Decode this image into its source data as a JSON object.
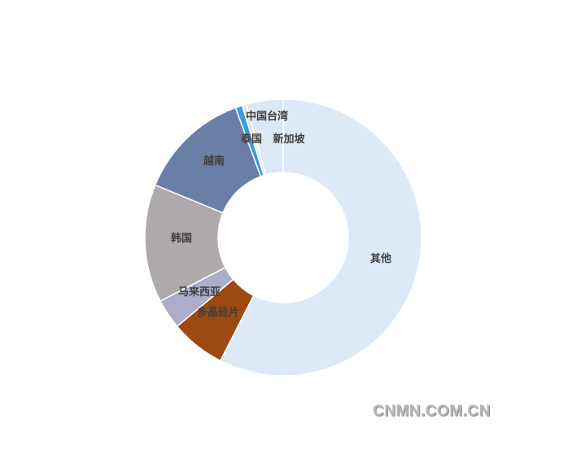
{
  "chart_data": {
    "type": "pie",
    "donut": true,
    "start": "top, clockwise",
    "slices": [
      {
        "name": "其他",
        "value": 57.5,
        "color": "#dde9f6"
      },
      {
        "name": "多晶硅片",
        "value": 6.4,
        "color": "#9c4a12"
      },
      {
        "name": "马来西亚",
        "value": 3.5,
        "color": "#adadcb"
      },
      {
        "name": "韩国",
        "value": 13.8,
        "color": "#aeaaaa"
      },
      {
        "name": "越南",
        "value": 13.2,
        "color": "#6a7fa6"
      },
      {
        "name": "泰国",
        "value": 0.8,
        "color": "#3d9cd2"
      },
      {
        "name": "中国台湾",
        "value": 0.5,
        "color": "#dbe6f3"
      },
      {
        "name": "新加坡",
        "value": 4.3,
        "color": "#dde8f5"
      }
    ],
    "legend": "none"
  },
  "watermark": "CNMN.COM.CN"
}
